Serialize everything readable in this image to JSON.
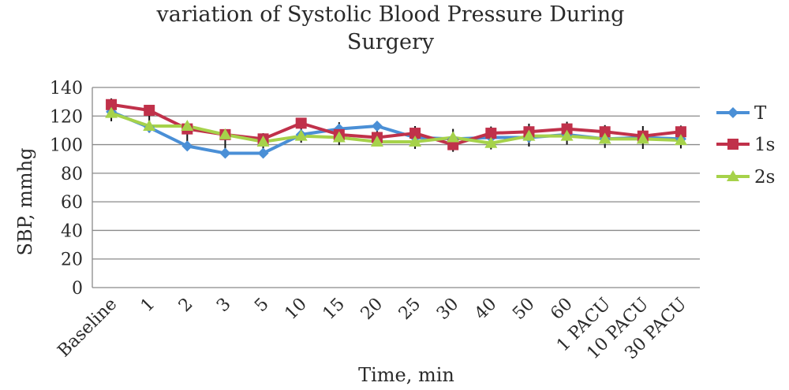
{
  "chart_data": {
    "type": "line",
    "title_lines": [
      "variation of Systolic Blood Pressure During",
      "Surgery"
    ],
    "xlabel": "Time, min",
    "ylabel": "SBP, mmhg",
    "ylim": [
      0,
      140
    ],
    "yticks": [
      0,
      20,
      40,
      60,
      80,
      100,
      120,
      140
    ],
    "grid": true,
    "legend_position": "right",
    "categories": [
      "Baseline",
      "1",
      "2",
      "3",
      "5",
      "10",
      "15",
      "20",
      "25",
      "30",
      "40",
      "50",
      "60",
      "1 PACU",
      "10 PACU",
      "30 PACU"
    ],
    "series": [
      {
        "name": "T",
        "color": "#4a8fd6",
        "marker": "diamond",
        "values": [
          123,
          112,
          99,
          94,
          94,
          107,
          111,
          113,
          105,
          104,
          105,
          105,
          107,
          104,
          105,
          104
        ]
      },
      {
        "name": "1s",
        "color": "#c0314a",
        "marker": "square",
        "values": [
          128,
          124,
          111,
          107,
          104,
          115,
          107,
          105,
          108,
          100,
          108,
          109,
          111,
          109,
          106,
          109
        ]
      },
      {
        "name": "2s",
        "color": "#a6d24a",
        "marker": "triangle",
        "values": [
          122,
          113,
          113,
          107,
          102,
          106,
          105,
          102,
          102,
          105,
          101,
          106,
          106,
          104,
          104,
          103
        ]
      }
    ],
    "error_bar_halfwidth": 8
  }
}
